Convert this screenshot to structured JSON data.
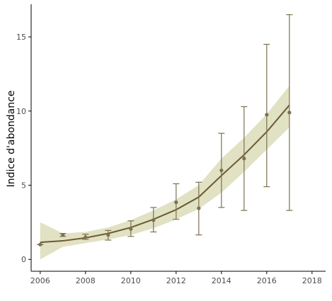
{
  "chart_data": {
    "type": "line",
    "title": "",
    "xlabel": "",
    "ylabel": "Indice d'abondance",
    "xlim": [
      2005.6,
      2018.6
    ],
    "ylim": [
      -0.8,
      17.2
    ],
    "xticks": [
      2006,
      2008,
      2010,
      2012,
      2014,
      2016,
      2018
    ],
    "yticks": [
      0,
      5,
      10,
      15
    ],
    "xtick_labels": [
      "2006",
      "2008",
      "2010",
      "2012",
      "2014",
      "2016",
      "2018"
    ],
    "ytick_labels": [
      "0",
      "5",
      "10",
      "15"
    ],
    "grid": false,
    "legend": "none",
    "series": [
      {
        "kind": "points_with_error_bars",
        "x": [
          2006,
          2007,
          2008,
          2009,
          2010,
          2011,
          2012,
          2013,
          2014,
          2015,
          2016,
          2017
        ],
        "y": [
          1.0,
          1.65,
          1.5,
          1.65,
          2.05,
          2.65,
          3.85,
          3.45,
          6.0,
          6.8,
          9.75,
          9.9
        ],
        "y_low": [
          1.0,
          1.55,
          1.35,
          1.3,
          1.55,
          1.85,
          2.7,
          1.65,
          3.5,
          3.3,
          4.9,
          3.3
        ],
        "y_high": [
          1.0,
          1.75,
          1.7,
          1.95,
          2.6,
          3.5,
          5.1,
          5.2,
          8.5,
          10.3,
          14.5,
          16.5
        ]
      },
      {
        "kind": "smooth_fit",
        "x": [
          2006,
          2007,
          2008,
          2009,
          2010,
          2011,
          2012,
          2013,
          2014,
          2015,
          2016,
          2017
        ],
        "y": [
          1.15,
          1.25,
          1.45,
          1.75,
          2.15,
          2.7,
          3.35,
          4.2,
          5.65,
          7.05,
          8.6,
          10.4
        ],
        "band_low": [
          0.0,
          0.85,
          1.1,
          1.35,
          1.65,
          2.1,
          2.7,
          3.4,
          4.5,
          5.9,
          7.4,
          8.9
        ],
        "band_high": [
          2.5,
          1.75,
          1.85,
          2.15,
          2.65,
          3.3,
          4.05,
          5.0,
          6.8,
          8.2,
          9.8,
          11.7
        ]
      }
    ],
    "colors": {
      "points": "#7d7150",
      "line": "#6b5b35",
      "band": "#dcdcb9",
      "axis": "#000000",
      "tick_text": "#4d4d4d"
    }
  }
}
